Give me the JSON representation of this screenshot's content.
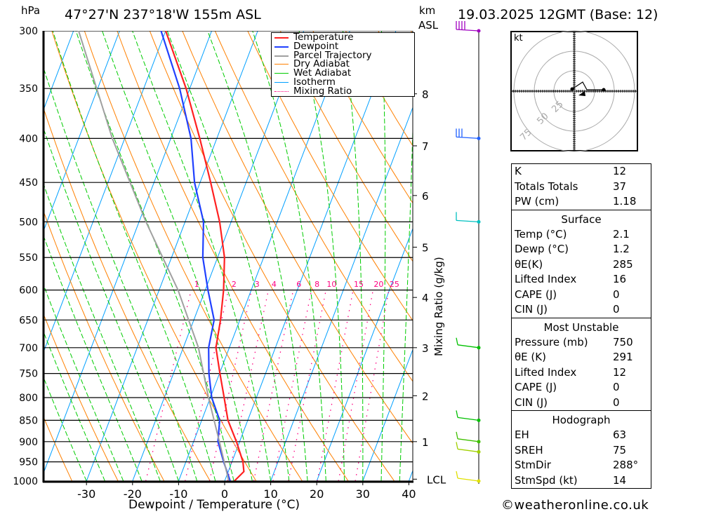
{
  "header": {
    "unit_left": "hPa",
    "location": "47°27'N  237°18'W  155m  ASL",
    "unit_km": "km",
    "unit_asl": "ASL",
    "datetime": "19.03.2025  12GMT  (Base: 12)"
  },
  "chart_data": {
    "type": "line",
    "title": "Skew-T log-P diagram",
    "xlabel": "Dewpoint / Temperature (°C)",
    "ylabel": "hPa",
    "right_label": "Mixing Ratio (g/kg)",
    "xlim": [
      -40,
      40
    ],
    "ylim": [
      1000,
      300
    ],
    "x_ticks": [
      "-30",
      "-20",
      "-10",
      "0",
      "10",
      "20",
      "30",
      "40"
    ],
    "x_tick_values": [
      -30,
      -20,
      -10,
      0,
      10,
      20,
      30,
      40
    ],
    "pressure_ticks": [
      "300",
      "350",
      "400",
      "450",
      "500",
      "550",
      "600",
      "650",
      "700",
      "750",
      "800",
      "850",
      "900",
      "950",
      "1000"
    ],
    "km_ticks": [
      {
        "label": "8",
        "p": 355
      },
      {
        "label": "7",
        "p": 408
      },
      {
        "label": "6",
        "p": 466
      },
      {
        "label": "5",
        "p": 535
      },
      {
        "label": "4",
        "p": 612
      },
      {
        "label": "3",
        "p": 700
      },
      {
        "label": "2",
        "p": 796
      },
      {
        "label": "1",
        "p": 900
      },
      {
        "label": "LCL",
        "p": 995
      }
    ],
    "mixing_ratio_labels": [
      "1",
      "2",
      "3",
      "4",
      "6",
      "8",
      "10",
      "15",
      "20",
      "25"
    ],
    "mixing_ratio_values": [
      1,
      2,
      3,
      4,
      6,
      8,
      10,
      15,
      20,
      25
    ],
    "legend": [
      {
        "label": "Temperature",
        "color": "#ff2020"
      },
      {
        "label": "Dewpoint",
        "color": "#2040ff"
      },
      {
        "label": "Parcel Trajectory",
        "color": "#a0a0a0"
      },
      {
        "label": "Dry Adiabat",
        "color": "#ff8000"
      },
      {
        "label": "Wet Adiabat",
        "color": "#00cc00"
      },
      {
        "label": "Isotherm",
        "color": "#00a0ff"
      },
      {
        "label": "Mixing Ratio",
        "color": "#ff0080"
      }
    ],
    "legend_position": "top-right",
    "series": [
      {
        "name": "Temperature",
        "color": "#ff2020",
        "p": [
          1000,
          975,
          950,
          900,
          850,
          800,
          750,
          700,
          650,
          600,
          550,
          500,
          450,
          400,
          350,
          300
        ],
        "t": [
          2.1,
          3.4,
          2.4,
          -0.7,
          -4.3,
          -7.0,
          -9.9,
          -12.9,
          -14.2,
          -16.0,
          -18.5,
          -22.5,
          -27.7,
          -33.7,
          -40.8,
          -50.0
        ]
      },
      {
        "name": "Dewpoint",
        "color": "#2040ff",
        "p": [
          1000,
          950,
          900,
          850,
          800,
          750,
          700,
          650,
          600,
          550,
          500,
          450,
          400,
          350,
          300
        ],
        "t": [
          1.2,
          -1.8,
          -4.7,
          -6.1,
          -9.7,
          -12.3,
          -14.5,
          -15.6,
          -19.4,
          -23.2,
          -26.0,
          -31.2,
          -35.6,
          -42.2,
          -51.0
        ]
      },
      {
        "name": "Parcel Trajectory",
        "color": "#a0a0a0",
        "p": [
          1000,
          900,
          800,
          700,
          600,
          500,
          400,
          300
        ],
        "t": [
          0.9,
          -4.4,
          -10.4,
          -16.7,
          -25.9,
          -38.5,
          -52.7,
          -68.9
        ]
      }
    ],
    "wind_barbs": [
      {
        "p": 300,
        "color": "#a000c0"
      },
      {
        "p": 400,
        "color": "#2060ff"
      },
      {
        "p": 500,
        "color": "#00c0c0"
      },
      {
        "p": 700,
        "color": "#00c000"
      },
      {
        "p": 850,
        "color": "#00c000"
      },
      {
        "p": 900,
        "color": "#40c000"
      },
      {
        "p": 925,
        "color": "#a0d000"
      },
      {
        "p": 1000,
        "color": "#e0e000"
      }
    ]
  },
  "hodograph": {
    "unit": "kt",
    "rings": [
      "25",
      "50",
      "75"
    ]
  },
  "indices": {
    "top": [
      {
        "k": "K",
        "v": "12"
      },
      {
        "k": "Totals Totals",
        "v": "37"
      },
      {
        "k": "PW (cm)",
        "v": "1.18"
      }
    ],
    "surface_title": "Surface",
    "surface": [
      {
        "k": "Temp (°C)",
        "v": "2.1"
      },
      {
        "k": "Dewp (°C)",
        "v": "1.2"
      },
      {
        "k": "θE(K)",
        "v": "285"
      },
      {
        "k": "Lifted Index",
        "v": "16"
      },
      {
        "k": "CAPE (J)",
        "v": "0"
      },
      {
        "k": "CIN (J)",
        "v": "0"
      }
    ],
    "mu_title": "Most Unstable",
    "mu": [
      {
        "k": "Pressure (mb)",
        "v": "750"
      },
      {
        "k": "θE (K)",
        "v": "291"
      },
      {
        "k": "Lifted Index",
        "v": "12"
      },
      {
        "k": "CAPE (J)",
        "v": "0"
      },
      {
        "k": "CIN (J)",
        "v": "0"
      }
    ],
    "hodo_title": "Hodograph",
    "hodo": [
      {
        "k": "EH",
        "v": "63"
      },
      {
        "k": "SREH",
        "v": "75"
      },
      {
        "k": "StmDir",
        "v": "288°"
      },
      {
        "k": "StmSpd (kt)",
        "v": "14"
      }
    ]
  },
  "footer": {
    "copyright": "©weatheronline.co.uk"
  }
}
